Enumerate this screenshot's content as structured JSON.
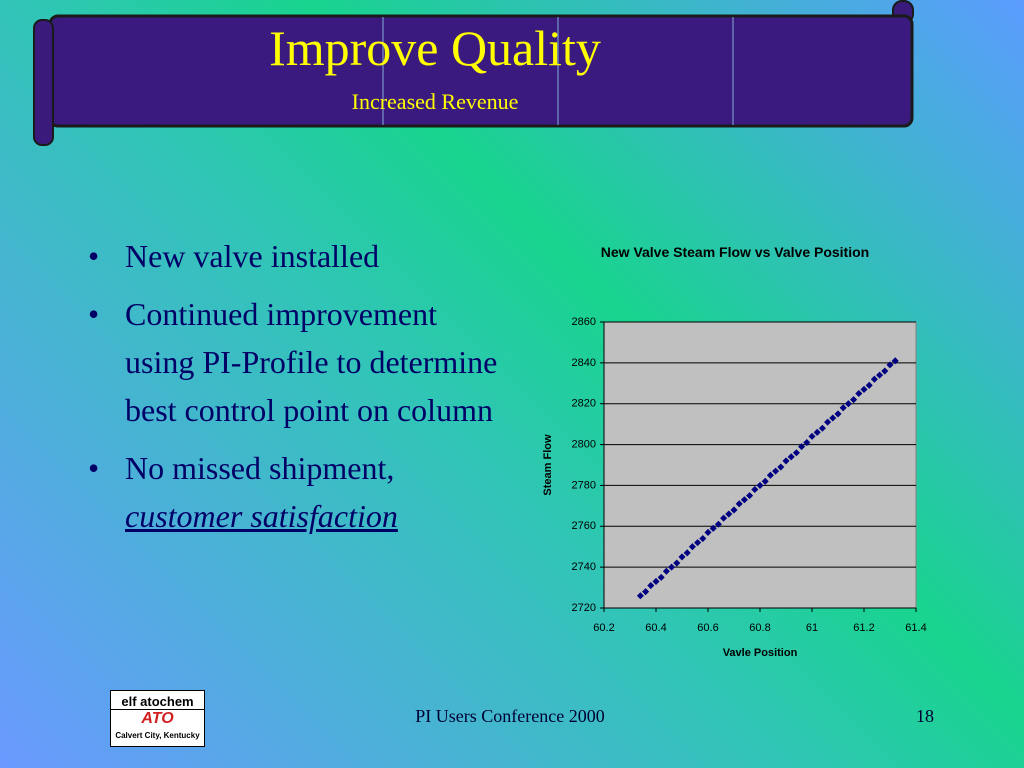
{
  "header": {
    "title": "Improve Quality",
    "subtitle": "Increased Revenue"
  },
  "bullets": [
    {
      "text": "New valve installed"
    },
    {
      "text": "Continued improvement using PI-Profile to determine best control point on column"
    },
    {
      "text": "No missed shipment,",
      "emphasis": "customer satisfaction"
    }
  ],
  "chart_data": {
    "type": "scatter",
    "title": "New Valve Steam Flow vs Valve Position",
    "x_label": "Vavle Position",
    "y_label": "Steam Flow",
    "color": "#000080",
    "grid": true,
    "x": [
      60.34,
      60.36,
      60.38,
      60.4,
      60.42,
      60.44,
      60.46,
      60.48,
      60.5,
      60.52,
      60.54,
      60.56,
      60.58,
      60.6,
      60.62,
      60.64,
      60.66,
      60.68,
      60.7,
      60.72,
      60.74,
      60.76,
      60.78,
      60.8,
      60.82,
      60.84,
      60.86,
      60.88,
      60.9,
      60.92,
      60.94,
      60.96,
      60.98,
      61.0,
      61.02,
      61.04,
      61.06,
      61.08,
      61.1,
      61.12,
      61.14,
      61.16,
      61.18,
      61.2,
      61.22,
      61.24,
      61.26,
      61.28,
      61.3,
      61.32
    ],
    "values": [
      2726,
      2728,
      2731,
      2733,
      2735,
      2738,
      2740,
      2742,
      2745,
      2747,
      2750,
      2752,
      2754,
      2757,
      2759,
      2761,
      2764,
      2766,
      2768,
      2771,
      2773,
      2775,
      2778,
      2780,
      2782,
      2785,
      2787,
      2789,
      2792,
      2794,
      2796,
      2799,
      2801,
      2804,
      2806,
      2808,
      2811,
      2813,
      2815,
      2818,
      2820,
      2822,
      2825,
      2827,
      2829,
      2832,
      2834,
      2836,
      2839,
      2841
    ],
    "xlim": [
      60.2,
      61.4
    ],
    "xticks": [
      60.2,
      60.4,
      60.6,
      60.8,
      61,
      61.2,
      61.4
    ],
    "ylim": [
      2720,
      2860
    ],
    "yticks": [
      2720,
      2740,
      2760,
      2780,
      2800,
      2820,
      2840,
      2860
    ]
  },
  "logo": {
    "brand": "elf atochem",
    "mark": "ATO",
    "location": "Calvert City, Kentucky"
  },
  "footer": {
    "text": "PI Users Conference 2000",
    "page": 18
  }
}
